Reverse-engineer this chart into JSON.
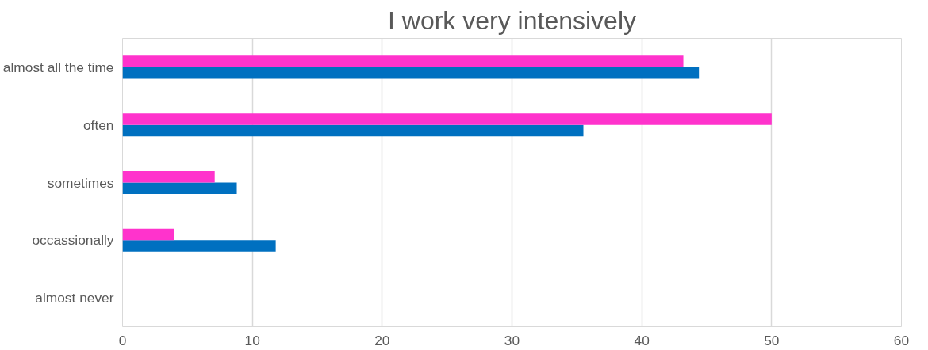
{
  "chart_data": {
    "type": "bar",
    "orientation": "horizontal",
    "title": "I work very intensively",
    "categories": [
      "almost all the time",
      "often",
      "sometimes",
      "occassionally",
      "almost never"
    ],
    "series": [
      {
        "color": "#0070c0",
        "values": [
          44.4,
          35.5,
          8.8,
          11.8,
          0
        ]
      },
      {
        "color": "#ff33cc",
        "values": [
          43.2,
          50,
          7.1,
          4.0,
          0
        ]
      }
    ],
    "xlim": [
      0,
      60
    ],
    "xticks": [
      0,
      10,
      20,
      30,
      40,
      50,
      60
    ],
    "grid": "x"
  }
}
